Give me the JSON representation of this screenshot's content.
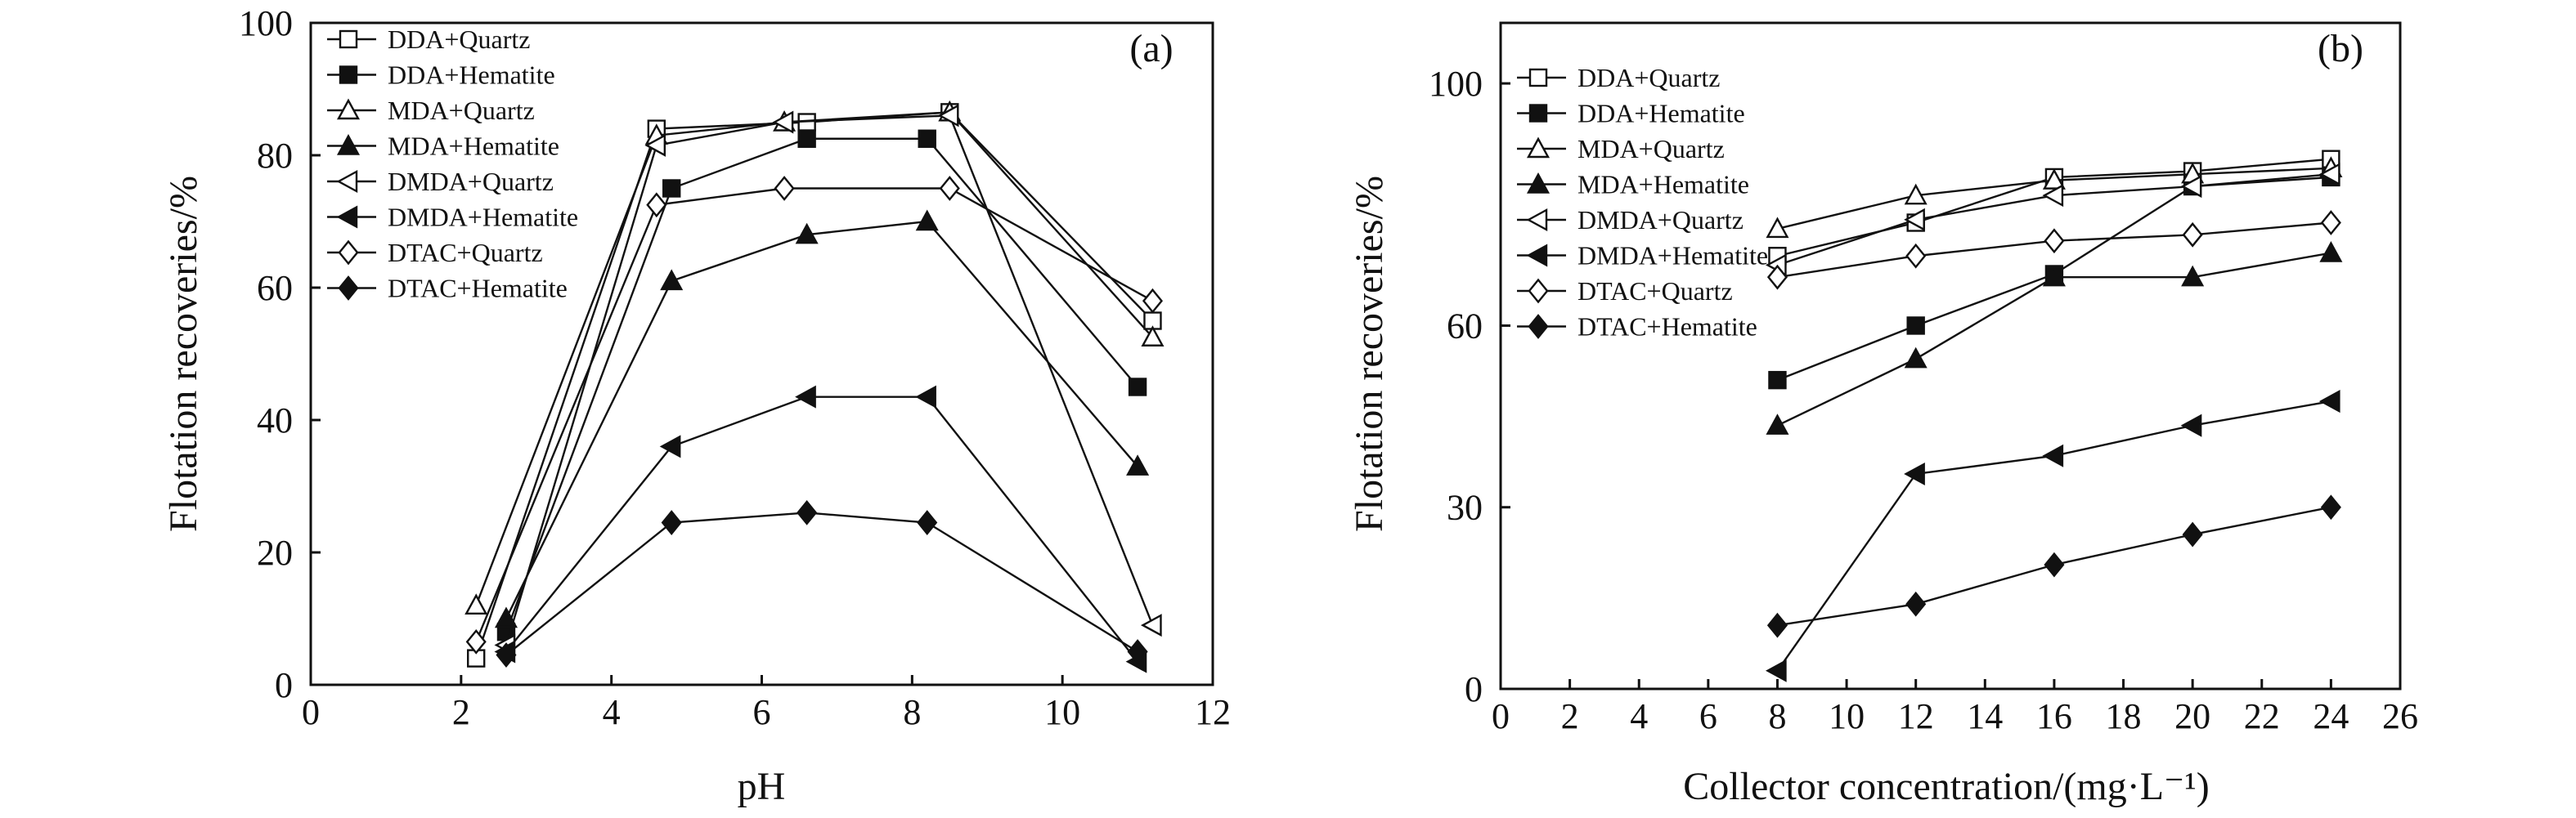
{
  "chart_data": [
    {
      "type": "line",
      "panel_label": "(a)",
      "xlabel": "pH",
      "ylabel": "Flotation recoveries/%",
      "xlim": [
        0,
        12
      ],
      "ylim": [
        0,
        100
      ],
      "xticks": [
        0,
        2,
        4,
        6,
        8,
        10,
        12
      ],
      "yticks": [
        0,
        20,
        40,
        60,
        80,
        100
      ],
      "legend_position": "top-left",
      "series": [
        {
          "name": "DDA+Quartz",
          "marker": "square-open",
          "x": [
            2.2,
            4.6,
            6.6,
            8.5,
            11.2
          ],
          "y": [
            4,
            84,
            85,
            86.5,
            55
          ]
        },
        {
          "name": "DDA+Hematite",
          "marker": "square-filled",
          "x": [
            2.6,
            4.8,
            6.6,
            8.2,
            11.0
          ],
          "y": [
            8,
            75,
            82.5,
            82.5,
            45
          ]
        },
        {
          "name": "MDA+Quartz",
          "marker": "triangle-open",
          "x": [
            2.2,
            4.6,
            6.3,
            8.5,
            11.2
          ],
          "y": [
            12,
            83,
            85,
            86.5,
            52.5
          ]
        },
        {
          "name": "MDA+Hematite",
          "marker": "triangle-filled",
          "x": [
            2.6,
            4.8,
            6.6,
            8.2,
            11.0
          ],
          "y": [
            10,
            61,
            68,
            70,
            33
          ]
        },
        {
          "name": "DMDA+Quartz",
          "marker": "tri-left-open",
          "x": [
            2.6,
            4.6,
            6.3,
            8.5,
            11.2
          ],
          "y": [
            6,
            81.5,
            85,
            86,
            9
          ]
        },
        {
          "name": "DMDA+Hematite",
          "marker": "tri-left-filled",
          "x": [
            2.6,
            4.8,
            6.6,
            8.2,
            11.0
          ],
          "y": [
            5,
            36,
            43.5,
            43.5,
            3.5
          ]
        },
        {
          "name": "DTAC+Quartz",
          "marker": "diamond-open",
          "x": [
            2.2,
            4.6,
            6.3,
            8.5,
            11.2
          ],
          "y": [
            6.5,
            72.5,
            75,
            75,
            58
          ]
        },
        {
          "name": "DTAC+Hematite",
          "marker": "diamond-filled",
          "x": [
            2.6,
            4.8,
            6.6,
            8.2,
            11.0
          ],
          "y": [
            4.5,
            24.5,
            26,
            24.5,
            5
          ]
        }
      ]
    },
    {
      "type": "line",
      "panel_label": "(b)",
      "xlabel": "Collector concentration/(mg·L⁻¹)",
      "ylabel": "Flotation recoveries/%",
      "xlim": [
        0,
        26
      ],
      "ylim": [
        0,
        110
      ],
      "xticks": [
        0,
        2,
        4,
        6,
        8,
        10,
        12,
        14,
        16,
        18,
        20,
        22,
        24,
        26
      ],
      "yticks": [
        0,
        30,
        60,
        100
      ],
      "legend_position": "top-left",
      "series": [
        {
          "name": "DDA+Quartz",
          "marker": "square-open",
          "x": [
            8,
            12,
            16,
            20,
            24
          ],
          "y": [
            71.5,
            77,
            84.5,
            85.5,
            87.5
          ]
        },
        {
          "name": "DDA+Hematite",
          "marker": "square-filled",
          "x": [
            8,
            12,
            16,
            20,
            24
          ],
          "y": [
            51,
            60,
            68.5,
            83,
            84.5
          ]
        },
        {
          "name": "MDA+Quartz",
          "marker": "triangle-open",
          "x": [
            8,
            12,
            16,
            20,
            24
          ],
          "y": [
            76,
            81.5,
            84,
            85,
            86
          ]
        },
        {
          "name": "MDA+Hematite",
          "marker": "triangle-filled",
          "x": [
            8,
            12,
            16,
            20,
            24
          ],
          "y": [
            43.5,
            54.5,
            68,
            68,
            72
          ]
        },
        {
          "name": "DMDA+Quartz",
          "marker": "tri-left-open",
          "x": [
            8,
            12,
            16,
            20,
            24
          ],
          "y": [
            70,
            77.5,
            81.5,
            83,
            85
          ]
        },
        {
          "name": "DMDA+Hematite",
          "marker": "tri-left-filled",
          "x": [
            8,
            12,
            16,
            20,
            24
          ],
          "y": [
            3,
            35.5,
            38.5,
            43.5,
            47.5
          ]
        },
        {
          "name": "DTAC+Quartz",
          "marker": "diamond-open",
          "x": [
            8,
            12,
            16,
            20,
            24
          ],
          "y": [
            68,
            71.5,
            74,
            75,
            77
          ]
        },
        {
          "name": "DTAC+Hematite",
          "marker": "diamond-filled",
          "x": [
            8,
            12,
            16,
            20,
            24
          ],
          "y": [
            10.5,
            14,
            20.5,
            25.5,
            30
          ]
        }
      ]
    }
  ]
}
